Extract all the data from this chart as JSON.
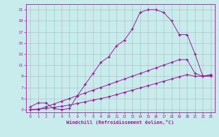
{
  "xlabel": "Windchill (Refroidissement éolien,°C)",
  "ylabel": "",
  "bg_color": "#c8ecec",
  "line_color": "#991899",
  "xlim": [
    -0.5,
    23.5
  ],
  "ylim": [
    2.5,
    22
  ],
  "xticks": [
    0,
    1,
    2,
    3,
    4,
    5,
    6,
    7,
    8,
    9,
    10,
    11,
    12,
    13,
    14,
    15,
    16,
    17,
    18,
    19,
    20,
    21,
    22,
    23
  ],
  "yticks": [
    3,
    5,
    7,
    9,
    11,
    13,
    15,
    17,
    19,
    21
  ],
  "line1_x": [
    0,
    1,
    2,
    3,
    4,
    5,
    6,
    7,
    8,
    9,
    10,
    11,
    12,
    13,
    14,
    15,
    16,
    17,
    18,
    19,
    20,
    21,
    22,
    23
  ],
  "line1_y": [
    3.5,
    4.2,
    4.2,
    3.2,
    3.0,
    3.2,
    5.5,
    7.5,
    9.5,
    11.5,
    12.5,
    14.5,
    15.5,
    17.5,
    20.5,
    21.0,
    21.0,
    20.5,
    19.0,
    16.5,
    16.5,
    13.0,
    9.0,
    9.0
  ],
  "line2_x": [
    0,
    1,
    2,
    3,
    4,
    5,
    6,
    7,
    8,
    9,
    10,
    11,
    12,
    13,
    14,
    15,
    16,
    17,
    18,
    19,
    20,
    21,
    22,
    23
  ],
  "line2_y": [
    3.0,
    3.0,
    3.5,
    4.0,
    4.5,
    5.0,
    5.5,
    6.0,
    6.5,
    7.0,
    7.5,
    8.0,
    8.5,
    9.0,
    9.5,
    10.0,
    10.5,
    11.0,
    11.5,
    12.0,
    12.0,
    9.5,
    9.0,
    9.2
  ],
  "line3_x": [
    0,
    1,
    2,
    3,
    4,
    5,
    6,
    7,
    8,
    9,
    10,
    11,
    12,
    13,
    14,
    15,
    16,
    17,
    18,
    19,
    20,
    21,
    22,
    23
  ],
  "line3_y": [
    3.0,
    3.1,
    3.2,
    3.4,
    3.6,
    3.8,
    4.1,
    4.4,
    4.7,
    5.0,
    5.3,
    5.7,
    6.1,
    6.5,
    6.9,
    7.3,
    7.7,
    8.1,
    8.5,
    8.9,
    9.3,
    9.0,
    9.0,
    9.3
  ]
}
